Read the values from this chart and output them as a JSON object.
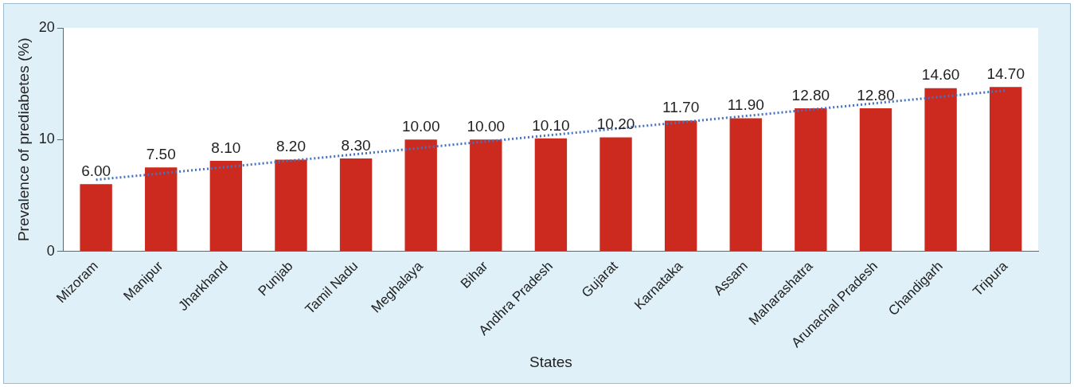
{
  "chart_data": {
    "type": "bar",
    "xlabel": "States",
    "ylabel": "Prevalence of prediabetes (%)",
    "categories": [
      "Mizoram",
      "Manipur",
      "Jharkhand",
      "Punjab",
      "Tamil Nadu",
      "Meghalaya",
      "Bihar",
      "Andhra Pradesh",
      "Gujarat",
      "Karnataka",
      "Assam",
      "Maharashatra",
      "Arunachal Pradesh",
      "Chandigarh",
      "Tripura"
    ],
    "series": [
      {
        "color": "#cc2a1e",
        "values": [
          6.0,
          7.5,
          8.1,
          8.2,
          8.3,
          10.0,
          10.0,
          10.1,
          10.2,
          11.7,
          11.9,
          12.8,
          12.8,
          14.6,
          14.7
        ],
        "value_labels": [
          "6.00",
          "7.50",
          "8.10",
          "8.20",
          "8.30",
          "10.00",
          "10.00",
          "10.10",
          "10.20",
          "11.70",
          "11.90",
          "12.80",
          "12.80",
          "14.60",
          "14.70"
        ]
      },
      {
        "type": "line",
        "color": "#4472c4",
        "x": [
          "Mizoram",
          "Tripura"
        ],
        "values": [
          6.4,
          14.4
        ],
        "line_style": "dotted",
        "marker": "none"
      }
    ],
    "ylim": [
      0,
      20
    ],
    "yticks": [
      0,
      10,
      20
    ]
  }
}
